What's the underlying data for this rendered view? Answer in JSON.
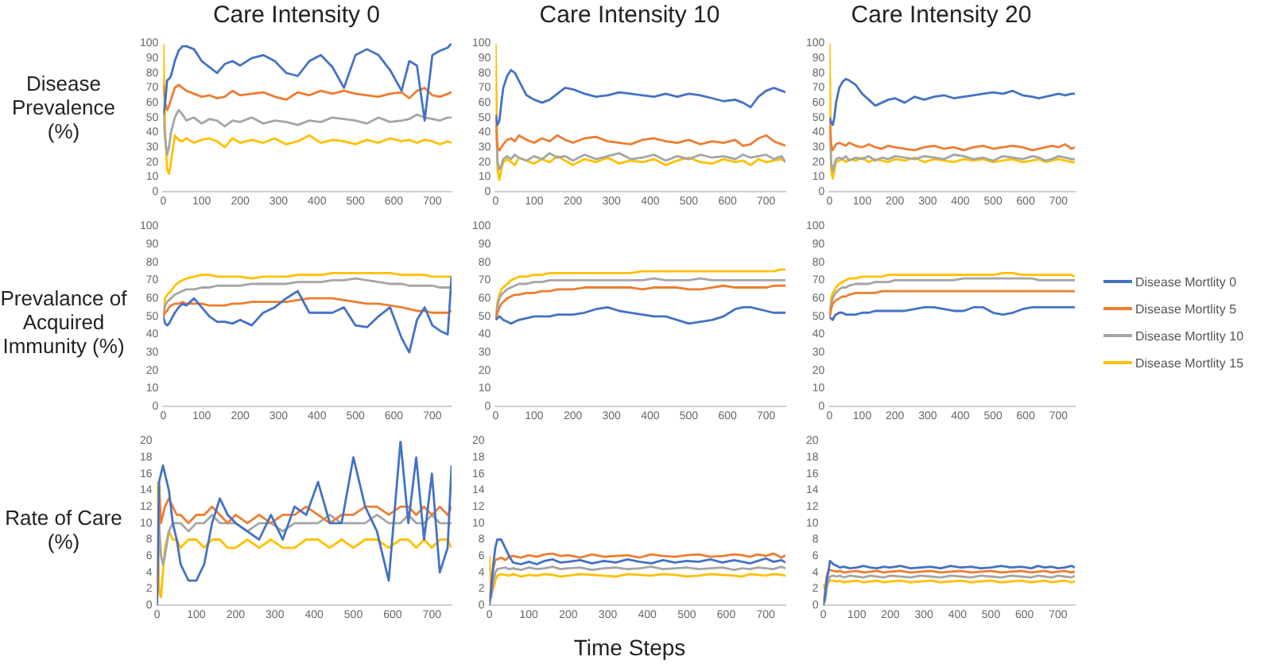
{
  "chart_data": [
    {
      "type": "line",
      "title": "Care Intensity 0",
      "ylabel": "Disease Prevalence (%)",
      "xlim": [
        0,
        750
      ],
      "xticks": [
        0,
        100,
        200,
        300,
        400,
        500,
        600,
        700
      ],
      "ylim": [
        0,
        100
      ],
      "yticks": [
        0,
        10,
        20,
        30,
        40,
        50,
        60,
        70,
        80,
        90,
        100
      ],
      "x": [
        0,
        5,
        10,
        15,
        20,
        30,
        40,
        50,
        60,
        80,
        100,
        120,
        140,
        160,
        180,
        200,
        230,
        260,
        290,
        320,
        350,
        380,
        410,
        440,
        470,
        500,
        530,
        560,
        590,
        620,
        640,
        660,
        680,
        700,
        720,
        740,
        750
      ],
      "series": [
        {
          "color": "#4472c4",
          "values": [
            52,
            60,
            75,
            76,
            78,
            88,
            95,
            98,
            98,
            96,
            88,
            84,
            80,
            86,
            88,
            85,
            90,
            92,
            88,
            80,
            78,
            88,
            92,
            84,
            70,
            92,
            96,
            92,
            82,
            68,
            88,
            85,
            48,
            92,
            95,
            97,
            100
          ]
        },
        {
          "color": "#ed7d31",
          "values": [
            72,
            60,
            55,
            58,
            62,
            70,
            72,
            70,
            68,
            66,
            64,
            65,
            63,
            64,
            68,
            65,
            66,
            67,
            64,
            62,
            67,
            65,
            68,
            66,
            68,
            66,
            65,
            64,
            66,
            67,
            63,
            68,
            70,
            65,
            64,
            66,
            67
          ]
        },
        {
          "color": "#a5a5a5",
          "values": [
            52,
            35,
            25,
            30,
            40,
            50,
            55,
            52,
            48,
            50,
            46,
            49,
            48,
            44,
            48,
            47,
            50,
            46,
            48,
            47,
            45,
            48,
            47,
            50,
            49,
            48,
            46,
            50,
            47,
            48,
            49,
            52,
            50,
            49,
            48,
            50,
            50
          ]
        },
        {
          "color": "#ffc000",
          "values": [
            100,
            40,
            15,
            12,
            20,
            38,
            35,
            34,
            36,
            33,
            35,
            36,
            34,
            30,
            36,
            33,
            35,
            33,
            36,
            32,
            34,
            38,
            33,
            35,
            34,
            32,
            35,
            33,
            36,
            34,
            35,
            33,
            35,
            34,
            32,
            34,
            33
          ]
        }
      ]
    },
    {
      "type": "line",
      "title": "Care Intensity 10",
      "xlim": [
        0,
        750
      ],
      "xticks": [
        0,
        100,
        200,
        300,
        400,
        500,
        600,
        700
      ],
      "ylim": [
        0,
        100
      ],
      "yticks": [
        0,
        10,
        20,
        30,
        40,
        50,
        60,
        70,
        80,
        90,
        100
      ],
      "x": [
        0,
        5,
        10,
        15,
        20,
        30,
        40,
        50,
        60,
        80,
        100,
        120,
        140,
        160,
        180,
        200,
        230,
        260,
        290,
        320,
        350,
        380,
        410,
        440,
        470,
        500,
        530,
        560,
        590,
        620,
        640,
        660,
        680,
        700,
        720,
        740,
        750
      ],
      "series": [
        {
          "color": "#4472c4",
          "values": [
            52,
            45,
            48,
            60,
            70,
            78,
            82,
            80,
            75,
            65,
            62,
            60,
            62,
            66,
            70,
            69,
            66,
            64,
            65,
            67,
            66,
            65,
            64,
            66,
            64,
            66,
            65,
            63,
            61,
            62,
            60,
            57,
            64,
            68,
            70,
            68,
            67
          ]
        },
        {
          "color": "#ed7d31",
          "values": [
            50,
            30,
            28,
            30,
            32,
            35,
            36,
            34,
            38,
            35,
            33,
            36,
            34,
            38,
            35,
            33,
            36,
            37,
            34,
            33,
            32,
            35,
            36,
            34,
            33,
            35,
            32,
            34,
            33,
            35,
            31,
            32,
            36,
            38,
            34,
            32,
            31
          ]
        },
        {
          "color": "#a5a5a5",
          "values": [
            50,
            20,
            15,
            18,
            22,
            24,
            22,
            25,
            23,
            21,
            24,
            22,
            26,
            23,
            24,
            21,
            25,
            22,
            24,
            26,
            22,
            23,
            25,
            21,
            24,
            22,
            25,
            23,
            24,
            22,
            25,
            23,
            24,
            25,
            22,
            24,
            20
          ]
        },
        {
          "color": "#ffc000",
          "values": [
            100,
            15,
            8,
            15,
            20,
            22,
            20,
            18,
            23,
            21,
            19,
            22,
            20,
            24,
            21,
            18,
            22,
            20,
            23,
            19,
            21,
            20,
            22,
            18,
            21,
            23,
            20,
            19,
            22,
            20,
            21,
            18,
            22,
            20,
            21,
            22,
            20
          ]
        }
      ]
    },
    {
      "type": "line",
      "title": "Care Intensity 20",
      "xlim": [
        0,
        750
      ],
      "xticks": [
        0,
        100,
        200,
        300,
        400,
        500,
        600,
        700
      ],
      "ylim": [
        0,
        100
      ],
      "yticks": [
        0,
        10,
        20,
        30,
        40,
        50,
        60,
        70,
        80,
        90,
        100
      ],
      "x": [
        0,
        5,
        10,
        15,
        20,
        30,
        40,
        50,
        60,
        80,
        100,
        120,
        140,
        160,
        180,
        200,
        230,
        260,
        290,
        320,
        350,
        380,
        410,
        440,
        470,
        500,
        530,
        560,
        590,
        620,
        640,
        660,
        680,
        700,
        720,
        740,
        750
      ],
      "series": [
        {
          "color": "#4472c4",
          "values": [
            50,
            47,
            45,
            50,
            60,
            70,
            74,
            76,
            75,
            72,
            66,
            62,
            58,
            60,
            62,
            63,
            60,
            64,
            62,
            64,
            65,
            63,
            64,
            65,
            66,
            67,
            66,
            68,
            65,
            64,
            63,
            64,
            65,
            66,
            65,
            66,
            66
          ]
        },
        {
          "color": "#ed7d31",
          "values": [
            50,
            32,
            28,
            30,
            32,
            33,
            32,
            31,
            33,
            31,
            30,
            32,
            30,
            29,
            31,
            30,
            29,
            28,
            30,
            31,
            29,
            30,
            28,
            30,
            31,
            29,
            30,
            31,
            30,
            28,
            29,
            30,
            31,
            30,
            32,
            29,
            30
          ]
        },
        {
          "color": "#a5a5a5",
          "values": [
            50,
            20,
            14,
            18,
            22,
            23,
            22,
            24,
            21,
            23,
            22,
            24,
            21,
            23,
            22,
            24,
            23,
            22,
            24,
            23,
            22,
            25,
            24,
            22,
            23,
            21,
            24,
            23,
            22,
            24,
            23,
            21,
            22,
            24,
            23,
            22,
            22
          ]
        },
        {
          "color": "#ffc000",
          "values": [
            100,
            15,
            9,
            14,
            20,
            21,
            22,
            20,
            22,
            21,
            23,
            20,
            22,
            21,
            20,
            22,
            21,
            23,
            20,
            22,
            21,
            20,
            22,
            21,
            22,
            20,
            21,
            22,
            20,
            21,
            22,
            20,
            21,
            22,
            21,
            20,
            20
          ]
        }
      ]
    },
    {
      "type": "line",
      "ylabel": "Prevalance of Acquired Immunity (%)",
      "xlim": [
        0,
        750
      ],
      "xticks": [
        0,
        100,
        200,
        300,
        400,
        500,
        600,
        700
      ],
      "ylim": [
        0,
        100
      ],
      "yticks": [
        0,
        10,
        20,
        30,
        40,
        50,
        60,
        70,
        80,
        90,
        100
      ],
      "x": [
        0,
        5,
        10,
        15,
        20,
        30,
        40,
        50,
        60,
        80,
        100,
        120,
        140,
        160,
        180,
        200,
        230,
        260,
        290,
        320,
        350,
        380,
        410,
        440,
        470,
        500,
        530,
        560,
        590,
        620,
        640,
        660,
        680,
        700,
        720,
        740,
        750
      ],
      "series": [
        {
          "color": "#4472c4",
          "values": [
            50,
            46,
            45,
            46,
            48,
            52,
            55,
            57,
            56,
            60,
            55,
            50,
            47,
            47,
            46,
            48,
            45,
            52,
            55,
            60,
            64,
            52,
            52,
            52,
            55,
            45,
            44,
            50,
            55,
            38,
            30,
            48,
            55,
            45,
            42,
            40,
            72
          ]
        },
        {
          "color": "#ed7d31",
          "values": [
            50,
            52,
            53,
            55,
            56,
            57,
            57,
            58,
            57,
            57,
            57,
            56,
            56,
            56,
            57,
            57,
            58,
            58,
            58,
            58,
            59,
            60,
            60,
            60,
            59,
            58,
            57,
            57,
            56,
            55,
            54,
            53,
            53,
            52,
            52,
            52,
            53
          ]
        },
        {
          "color": "#a5a5a5",
          "values": [
            50,
            56,
            58,
            59,
            60,
            62,
            63,
            64,
            65,
            65,
            66,
            66,
            67,
            67,
            67,
            67,
            68,
            68,
            68,
            68,
            69,
            69,
            69,
            70,
            70,
            71,
            70,
            69,
            68,
            68,
            67,
            67,
            67,
            67,
            66,
            66,
            66
          ]
        },
        {
          "color": "#ffc000",
          "values": [
            50,
            60,
            62,
            63,
            64,
            67,
            69,
            70,
            71,
            72,
            73,
            73,
            72,
            72,
            72,
            72,
            71,
            72,
            72,
            72,
            73,
            73,
            73,
            74,
            74,
            74,
            74,
            74,
            74,
            73,
            73,
            73,
            73,
            72,
            72,
            72,
            72
          ]
        }
      ]
    },
    {
      "type": "line",
      "xlim": [
        0,
        750
      ],
      "xticks": [
        0,
        100,
        200,
        300,
        400,
        500,
        600,
        700
      ],
      "ylim": [
        0,
        100
      ],
      "yticks": [
        0,
        10,
        20,
        30,
        40,
        50,
        60,
        70,
        80,
        90,
        100
      ],
      "x": [
        0,
        5,
        10,
        15,
        20,
        30,
        40,
        50,
        60,
        80,
        100,
        120,
        140,
        160,
        180,
        200,
        230,
        260,
        290,
        320,
        350,
        380,
        410,
        440,
        470,
        500,
        530,
        560,
        590,
        620,
        640,
        660,
        680,
        700,
        720,
        740,
        750
      ],
      "series": [
        {
          "color": "#4472c4",
          "values": [
            48,
            49,
            50,
            49,
            48,
            47,
            46,
            47,
            48,
            49,
            50,
            50,
            50,
            51,
            51,
            51,
            52,
            54,
            55,
            53,
            52,
            51,
            50,
            50,
            48,
            46,
            47,
            48,
            50,
            54,
            55,
            55,
            54,
            53,
            52,
            52,
            52
          ]
        },
        {
          "color": "#ed7d31",
          "values": [
            48,
            52,
            55,
            57,
            58,
            60,
            61,
            62,
            62,
            63,
            63,
            64,
            64,
            65,
            65,
            65,
            66,
            66,
            66,
            66,
            66,
            65,
            66,
            66,
            66,
            65,
            65,
            66,
            67,
            66,
            66,
            66,
            66,
            66,
            67,
            67,
            67
          ]
        },
        {
          "color": "#a5a5a5",
          "values": [
            48,
            56,
            60,
            62,
            63,
            65,
            66,
            67,
            68,
            68,
            69,
            69,
            70,
            70,
            70,
            70,
            70,
            70,
            70,
            70,
            70,
            70,
            71,
            70,
            70,
            70,
            71,
            70,
            70,
            70,
            70,
            70,
            70,
            70,
            70,
            70,
            70
          ]
        },
        {
          "color": "#ffc000",
          "values": [
            48,
            58,
            62,
            65,
            66,
            68,
            70,
            71,
            72,
            72,
            73,
            73,
            74,
            74,
            74,
            74,
            74,
            74,
            74,
            74,
            74,
            75,
            75,
            75,
            75,
            75,
            75,
            75,
            75,
            75,
            75,
            75,
            75,
            75,
            75,
            76,
            76
          ]
        }
      ]
    },
    {
      "type": "line",
      "legend": "right",
      "xlim": [
        0,
        750
      ],
      "xticks": [
        0,
        100,
        200,
        300,
        400,
        500,
        600,
        700
      ],
      "ylim": [
        0,
        100
      ],
      "yticks": [
        0,
        10,
        20,
        30,
        40,
        50,
        60,
        70,
        80,
        90,
        100
      ],
      "x": [
        0,
        5,
        10,
        15,
        20,
        30,
        40,
        50,
        60,
        80,
        100,
        120,
        140,
        160,
        180,
        200,
        230,
        260,
        290,
        320,
        350,
        380,
        410,
        440,
        470,
        500,
        530,
        560,
        590,
        620,
        640,
        660,
        680,
        700,
        720,
        740,
        750
      ],
      "series": [
        {
          "name": "Disease Mortlity 0",
          "color": "#4472c4",
          "values": [
            49,
            49,
            48,
            50,
            51,
            52,
            52,
            51,
            51,
            51,
            52,
            52,
            53,
            53,
            53,
            53,
            53,
            54,
            55,
            55,
            54,
            53,
            53,
            55,
            55,
            52,
            51,
            52,
            54,
            55,
            55,
            55,
            55,
            55,
            55,
            55,
            55
          ]
        },
        {
          "name": "Disease Mortlity 5",
          "color": "#ed7d31",
          "values": [
            49,
            54,
            57,
            58,
            59,
            60,
            61,
            61,
            62,
            63,
            63,
            63,
            63,
            64,
            64,
            64,
            64,
            64,
            64,
            64,
            64,
            64,
            64,
            64,
            64,
            64,
            64,
            64,
            64,
            64,
            64,
            64,
            64,
            64,
            64,
            64,
            64
          ]
        },
        {
          "name": "Disease Mortlity 10",
          "color": "#a5a5a5",
          "values": [
            49,
            57,
            60,
            62,
            63,
            65,
            66,
            66,
            67,
            68,
            68,
            68,
            69,
            69,
            69,
            70,
            70,
            70,
            70,
            70,
            70,
            70,
            71,
            71,
            71,
            71,
            71,
            71,
            71,
            71,
            70,
            70,
            70,
            70,
            70,
            70,
            70
          ]
        },
        {
          "name": "Disease Mortlity 15",
          "color": "#ffc000",
          "values": [
            49,
            60,
            63,
            64,
            66,
            68,
            69,
            70,
            71,
            71,
            72,
            72,
            72,
            72,
            73,
            73,
            73,
            73,
            73,
            73,
            73,
            73,
            73,
            73,
            73,
            73,
            74,
            74,
            73,
            73,
            73,
            73,
            73,
            73,
            73,
            73,
            72
          ]
        }
      ]
    },
    {
      "type": "line",
      "ylabel": "Rate of Care (%)",
      "xlim": [
        0,
        750
      ],
      "xticks": [
        0,
        100,
        200,
        300,
        400,
        500,
        600,
        700
      ],
      "ylim": [
        0,
        20
      ],
      "yticks": [
        0,
        2,
        4,
        6,
        8,
        10,
        12,
        14,
        16,
        18,
        20
      ],
      "x": [
        0,
        5,
        10,
        15,
        20,
        30,
        40,
        50,
        60,
        80,
        100,
        120,
        140,
        160,
        180,
        200,
        230,
        260,
        290,
        320,
        350,
        380,
        410,
        440,
        470,
        500,
        530,
        560,
        590,
        620,
        640,
        660,
        680,
        700,
        720,
        740,
        750
      ],
      "series": [
        {
          "color": "#4472c4",
          "values": [
            0,
            15,
            16,
            17,
            16,
            14,
            10,
            8,
            5,
            3,
            3,
            5,
            10,
            13,
            11,
            10,
            9,
            8,
            11,
            8,
            12,
            11,
            15,
            10,
            10,
            18,
            12,
            9,
            3,
            20,
            10,
            18,
            8,
            16,
            4,
            7,
            17
          ]
        },
        {
          "color": "#ed7d31",
          "values": [
            0,
            15,
            10,
            11,
            12,
            13,
            12,
            11,
            11,
            10,
            11,
            11,
            12,
            11,
            10,
            11,
            10,
            11,
            10,
            11,
            11,
            12,
            11,
            10,
            11,
            11,
            12,
            12,
            11,
            12,
            12,
            11,
            12,
            11,
            12,
            11,
            12
          ]
        },
        {
          "color": "#a5a5a5",
          "values": [
            0,
            10,
            6,
            5,
            6,
            9,
            10,
            10,
            10,
            9,
            10,
            10,
            11,
            10,
            10,
            10,
            9,
            10,
            10,
            9,
            10,
            10,
            10,
            11,
            10,
            10,
            10,
            11,
            10,
            10,
            11,
            10,
            10,
            11,
            10,
            10,
            10
          ]
        },
        {
          "color": "#ffc000",
          "values": [
            15,
            2,
            1,
            4,
            7,
            9,
            8,
            8,
            7,
            8,
            8,
            7,
            8,
            8,
            7,
            7,
            8,
            7,
            8,
            7,
            7,
            8,
            8,
            7,
            8,
            7,
            8,
            8,
            7,
            8,
            8,
            7,
            8,
            7,
            8,
            8,
            7
          ]
        }
      ]
    },
    {
      "type": "line",
      "xlabel": "Time Steps",
      "xlim": [
        0,
        750
      ],
      "xticks": [
        0,
        100,
        200,
        300,
        400,
        500,
        600,
        700
      ],
      "ylim": [
        0,
        20
      ],
      "yticks": [
        0,
        2,
        4,
        6,
        8,
        10,
        12,
        14,
        16,
        18,
        20
      ],
      "x": [
        0,
        5,
        10,
        15,
        20,
        30,
        40,
        50,
        60,
        80,
        100,
        120,
        140,
        160,
        180,
        200,
        230,
        260,
        290,
        320,
        350,
        380,
        410,
        440,
        470,
        500,
        530,
        560,
        590,
        620,
        640,
        660,
        680,
        700,
        720,
        740,
        750
      ],
      "series": [
        {
          "color": "#4472c4",
          "values": [
            0,
            2,
            5,
            7,
            8,
            8,
            7,
            6,
            5.2,
            5,
            5.3,
            5,
            5.4,
            5.6,
            5.2,
            5.3,
            5.5,
            5.1,
            5.4,
            5.2,
            5.6,
            5.3,
            5.1,
            5.5,
            5.2,
            5.4,
            5.3,
            5.6,
            5.2,
            5.5,
            5.3,
            5.1,
            5.4,
            5.7,
            5.3,
            5.5,
            5.2
          ]
        },
        {
          "color": "#ed7d31",
          "values": [
            0.5,
            3,
            4.5,
            5.5,
            5.6,
            5.8,
            5.5,
            5.9,
            6,
            5.8,
            6.1,
            5.9,
            6.2,
            6.3,
            6,
            6.1,
            5.8,
            6.2,
            5.9,
            6,
            6.1,
            5.8,
            6.2,
            6,
            5.9,
            6.1,
            6.2,
            5.9,
            6,
            6.2,
            6.1,
            5.9,
            6.2,
            6,
            6.3,
            5.8,
            6.1
          ]
        },
        {
          "color": "#a5a5a5",
          "values": [
            1,
            1,
            3,
            4,
            4.4,
            4.5,
            4.6,
            4.4,
            4.5,
            4.3,
            4.6,
            4.4,
            4.5,
            4.7,
            4.4,
            4.5,
            4.6,
            4.3,
            4.5,
            4.6,
            4.4,
            4.5,
            4.7,
            4.4,
            4.5,
            4.6,
            4.4,
            4.5,
            4.6,
            4.3,
            4.5,
            4.4,
            4.6,
            4.5,
            4.4,
            4.7,
            4.5
          ]
        },
        {
          "color": "#ffc000",
          "values": [
            6,
            1.5,
            2,
            3,
            3.6,
            3.8,
            3.7,
            3.6,
            3.8,
            3.5,
            3.7,
            3.6,
            3.8,
            3.7,
            3.5,
            3.6,
            3.8,
            3.7,
            3.6,
            3.5,
            3.8,
            3.7,
            3.6,
            3.8,
            3.7,
            3.5,
            3.6,
            3.8,
            3.7,
            3.6,
            3.5,
            3.8,
            3.7,
            3.6,
            3.8,
            3.7,
            3.6
          ]
        }
      ]
    },
    {
      "type": "line",
      "xlim": [
        0,
        750
      ],
      "xticks": [
        0,
        100,
        200,
        300,
        400,
        500,
        600,
        700
      ],
      "ylim": [
        0,
        20
      ],
      "yticks": [
        0,
        2,
        4,
        6,
        8,
        10,
        12,
        14,
        16,
        18,
        20
      ],
      "x": [
        0,
        5,
        10,
        15,
        20,
        30,
        40,
        50,
        60,
        80,
        100,
        120,
        140,
        160,
        180,
        200,
        230,
        260,
        290,
        320,
        350,
        380,
        410,
        440,
        470,
        500,
        530,
        560,
        590,
        620,
        640,
        660,
        680,
        700,
        720,
        740,
        750
      ],
      "series": [
        {
          "color": "#4472c4",
          "values": [
            0,
            1,
            3,
            4,
            5.4,
            5,
            4.8,
            4.6,
            4.7,
            4.5,
            4.6,
            4.8,
            4.6,
            4.5,
            4.7,
            4.6,
            4.8,
            4.5,
            4.6,
            4.7,
            4.5,
            4.8,
            4.6,
            4.7,
            4.5,
            4.6,
            4.8,
            4.6,
            4.7,
            4.5,
            4.8,
            4.6,
            4.7,
            4.5,
            4.6,
            4.8,
            4.6
          ]
        },
        {
          "color": "#ed7d31",
          "values": [
            0.5,
            1.5,
            3.5,
            4.2,
            4.3,
            4.2,
            4.1,
            4.2,
            4,
            4.1,
            4.2,
            4,
            4.1,
            4.2,
            4,
            4.1,
            4.2,
            4,
            4.1,
            4.2,
            4,
            4.1,
            4.2,
            4,
            4.1,
            4.2,
            4,
            4.1,
            4.2,
            4,
            4.1,
            4.2,
            4,
            4.1,
            4.2,
            4,
            4.1
          ]
        },
        {
          "color": "#a5a5a5",
          "values": [
            1,
            0.5,
            2,
            3,
            3.5,
            3.6,
            3.5,
            3.6,
            3.4,
            3.6,
            3.5,
            3.4,
            3.6,
            3.5,
            3.4,
            3.6,
            3.5,
            3.4,
            3.6,
            3.5,
            3.4,
            3.6,
            3.5,
            3.4,
            3.6,
            3.5,
            3.4,
            3.6,
            3.5,
            3.4,
            3.6,
            3.5,
            3.4,
            3.6,
            3.5,
            3.4,
            3.6
          ]
        },
        {
          "color": "#ffc000",
          "values": [
            2.6,
            2,
            2.5,
            2.8,
            3,
            3,
            2.9,
            3,
            2.8,
            2.9,
            3,
            2.8,
            2.9,
            3,
            2.8,
            2.9,
            3,
            2.8,
            2.9,
            3,
            2.8,
            2.9,
            3,
            2.8,
            2.9,
            3,
            2.8,
            2.9,
            3,
            2.8,
            2.9,
            3,
            2.8,
            2.9,
            3,
            2.8,
            2.9
          ]
        }
      ]
    }
  ]
}
